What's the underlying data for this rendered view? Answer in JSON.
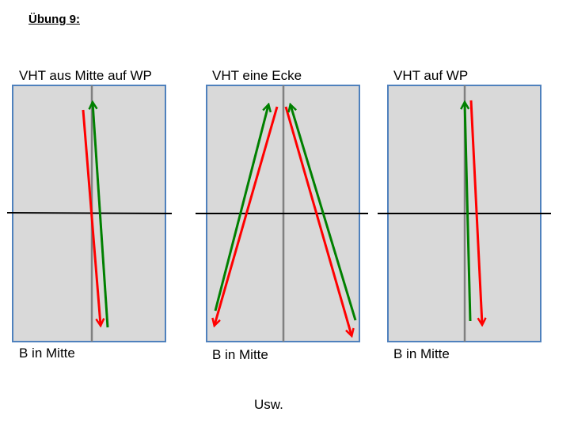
{
  "title": "Übung 9:",
  "panels": [
    {
      "top_label": "VHT aus Mitte auf WP",
      "bottom_label": "B in Mitte"
    },
    {
      "top_label": "VHT eine Ecke",
      "bottom_label": "B in Mitte"
    },
    {
      "top_label": "VHT auf WP",
      "bottom_label": "B in Mitte"
    }
  ],
  "footer": "Usw.",
  "colors": {
    "court_fill": "#d9d9d9",
    "court_border": "#4f81bd",
    "center_line": "#808080",
    "net_line": "#000000",
    "arrow_red": "#ff0000",
    "arrow_green": "#008000"
  }
}
